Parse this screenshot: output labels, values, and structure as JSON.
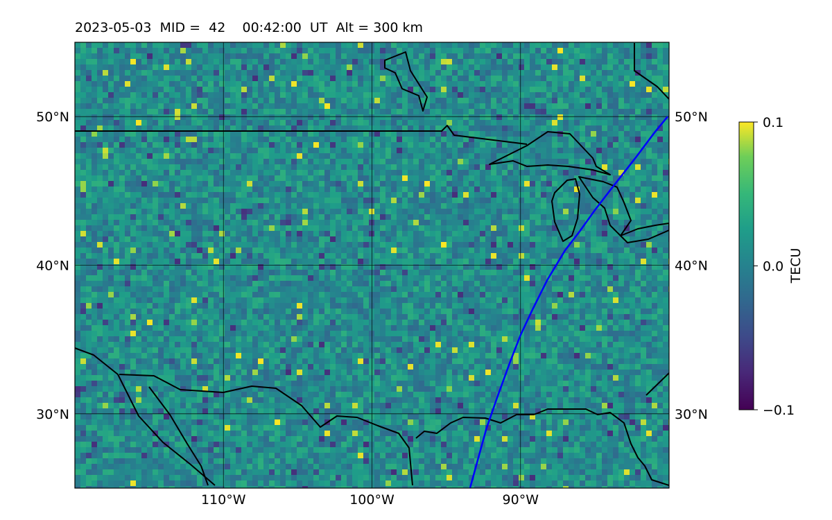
{
  "title": "2023-05-03  MID =  42    00:42:00  UT  Alt = 300 km",
  "chart_data": {
    "type": "heatmap",
    "title": "2023-05-03  MID =  42    00:42:00  UT  Alt = 300 km",
    "lon_range": [
      -120,
      -80
    ],
    "lat_range": [
      25,
      55
    ],
    "lon_ticks": [
      {
        "value": -110,
        "label": "110°W"
      },
      {
        "value": -100,
        "label": "100°W"
      },
      {
        "value": -90,
        "label": "90°W"
      }
    ],
    "lat_ticks": [
      {
        "value": 50,
        "label": "50°N"
      },
      {
        "value": 40,
        "label": "40°N"
      },
      {
        "value": 30,
        "label": "30°N"
      }
    ],
    "grid": true,
    "colormap": "viridis",
    "colorbar": {
      "label": "TECU",
      "min": -0.1,
      "max": 0.1,
      "ticks": [
        {
          "value": 0.1,
          "label": "0.1"
        },
        {
          "value": 0.0,
          "label": "0.0"
        },
        {
          "value": -0.1,
          "label": "−0.1"
        }
      ]
    },
    "satellite_track": {
      "color": "#0000ff",
      "points": [
        [
          -80.1,
          50.0
        ],
        [
          -81.0,
          48.9
        ],
        [
          -82.2,
          47.3
        ],
        [
          -84.0,
          45.0
        ],
        [
          -85.0,
          43.7
        ],
        [
          -86.0,
          42.3
        ],
        [
          -87.0,
          41.0
        ],
        [
          -88.2,
          39.0
        ],
        [
          -89.2,
          37.0
        ],
        [
          -90.0,
          35.3
        ],
        [
          -90.7,
          33.5
        ],
        [
          -91.5,
          31.3
        ],
        [
          -92.3,
          29.0
        ],
        [
          -93.4,
          25.0
        ]
      ]
    }
  }
}
